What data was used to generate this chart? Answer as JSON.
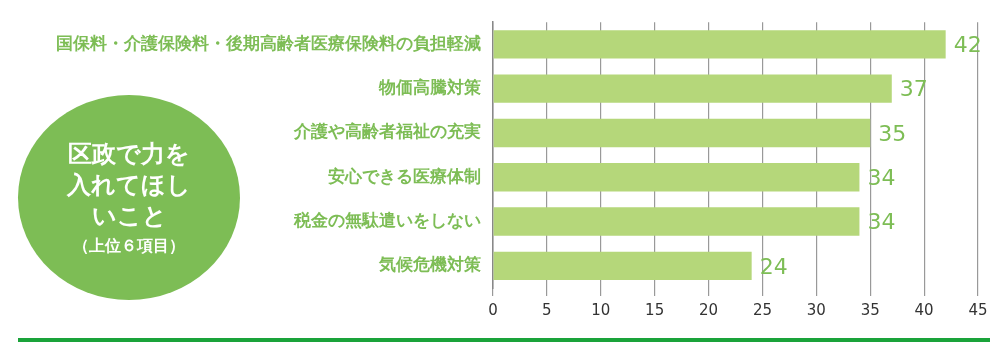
{
  "chart_data": {
    "type": "bar",
    "orientation": "horizontal",
    "title": "区政で力を入れてほしいこと",
    "subtitle": "（上位６項目）",
    "categories": [
      "国保料・介護保険料・後期高齢者医療保険料の負担軽減",
      "物価高騰対策",
      "介護や高齢者福祉の充実",
      "安心できる医療体制",
      "税金の無駄遣いをしない",
      "気候危機対策"
    ],
    "values": [
      42,
      37,
      35,
      34,
      34,
      24
    ],
    "color": "#b5d77a",
    "xlim": [
      0,
      45
    ],
    "xticks": [
      0,
      5,
      10,
      15,
      20,
      25,
      30,
      35,
      40,
      45
    ],
    "grid": "x",
    "data_labels": true
  }
}
